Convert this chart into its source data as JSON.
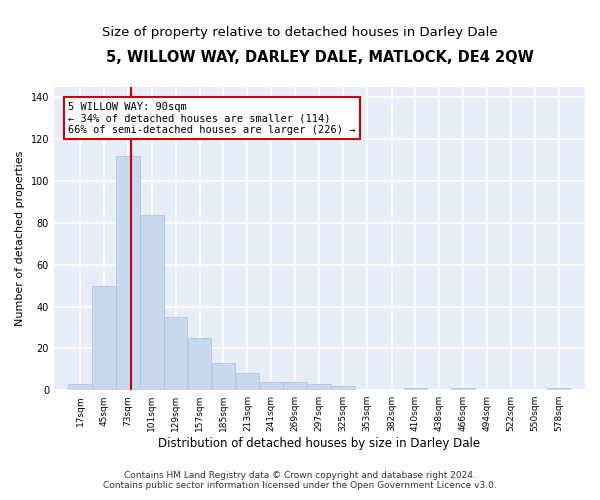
{
  "title": "5, WILLOW WAY, DARLEY DALE, MATLOCK, DE4 2QW",
  "subtitle": "Size of property relative to detached houses in Darley Dale",
  "xlabel": "Distribution of detached houses by size in Darley Dale",
  "ylabel": "Number of detached properties",
  "bar_color": "#c8d8ee",
  "bar_edge_color": "#a8bedd",
  "bg_color": "#e8eef8",
  "grid_color": "#ffffff",
  "vline_x": 90,
  "vline_color": "#cc0000",
  "annotation_text": "5 WILLOW WAY: 90sqm\n← 34% of detached houses are smaller (114)\n66% of semi-detached houses are larger (226) →",
  "annotation_box_color": "#ffffff",
  "annotation_box_edge": "#cc0000",
  "bins": [
    17,
    45,
    73,
    101,
    129,
    157,
    185,
    213,
    241,
    269,
    297,
    325,
    353,
    382,
    410,
    438,
    466,
    494,
    522,
    550,
    578
  ],
  "counts": [
    3,
    50,
    112,
    84,
    35,
    25,
    13,
    8,
    4,
    4,
    3,
    2,
    0,
    0,
    1,
    0,
    1,
    0,
    0,
    0,
    1
  ],
  "ylim": [
    0,
    145
  ],
  "yticks": [
    0,
    20,
    40,
    60,
    80,
    100,
    120,
    140
  ],
  "footnote": "Contains HM Land Registry data © Crown copyright and database right 2024.\nContains public sector information licensed under the Open Government Licence v3.0.",
  "title_fontsize": 10.5,
  "subtitle_fontsize": 9.5,
  "xlabel_fontsize": 8.5,
  "ylabel_fontsize": 8,
  "footnote_fontsize": 6.5,
  "annotation_fontsize": 7.5,
  "tick_fontsize": 6.5
}
